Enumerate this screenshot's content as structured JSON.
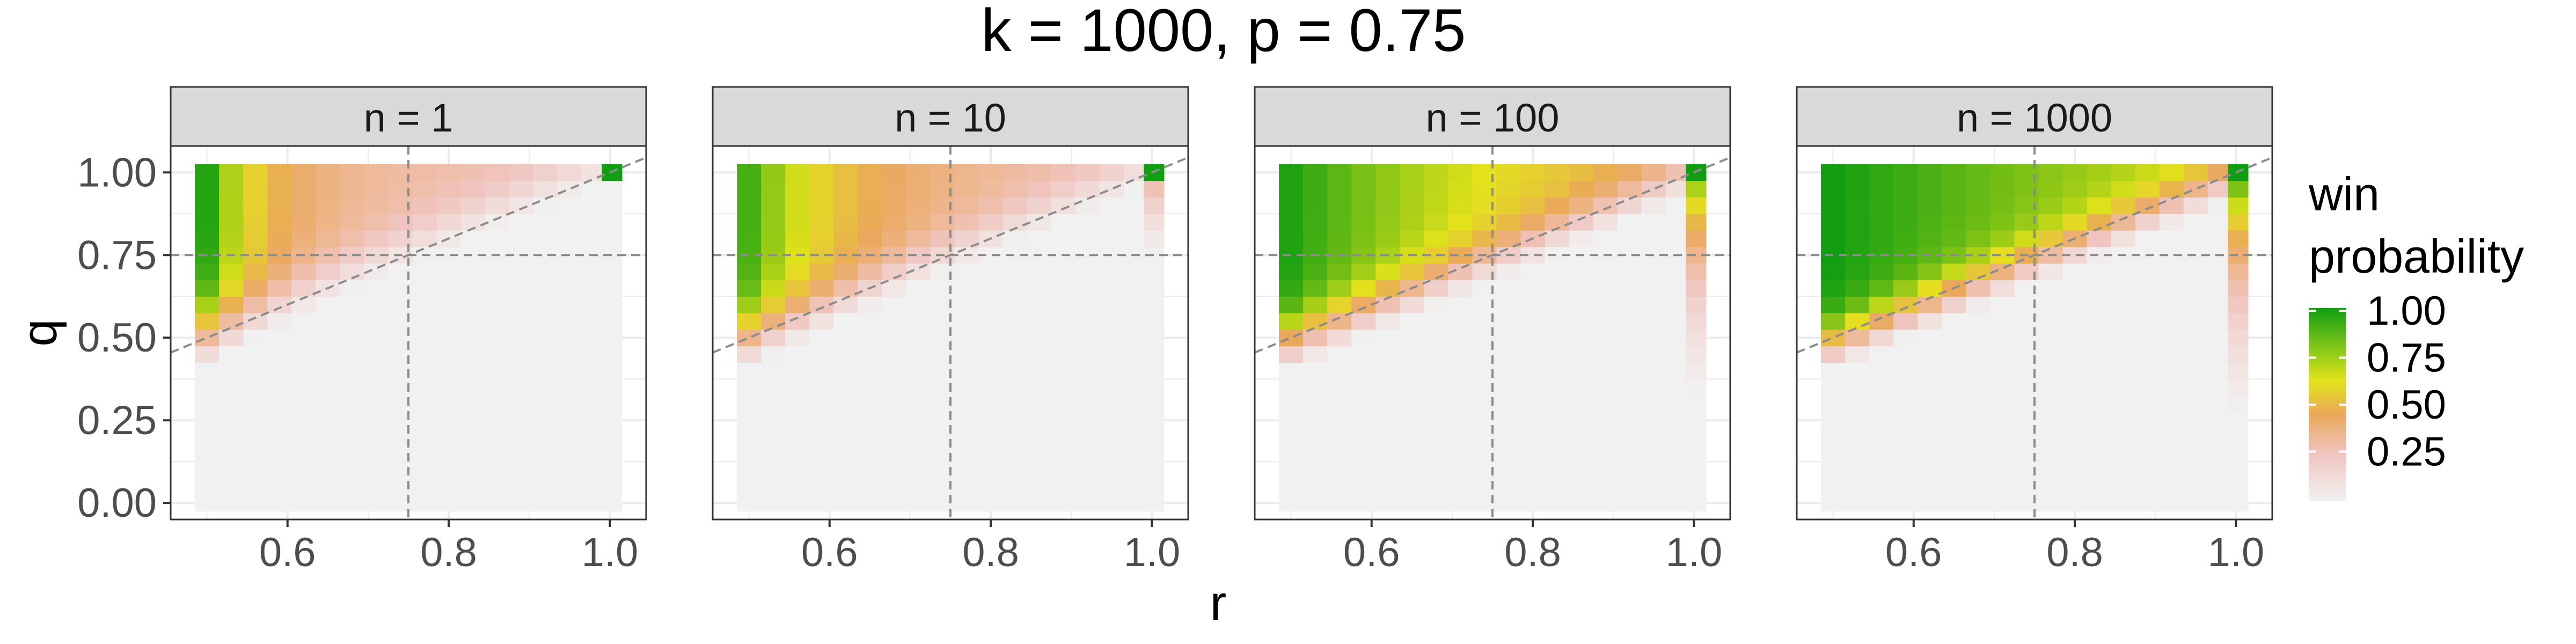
{
  "chart_data": {
    "type": "heatmap",
    "title": "k = 1000, p = 0.75",
    "xlabel": "r",
    "ylabel": "q",
    "xlim": [
      0.455,
      1.045
    ],
    "ylim": [
      -0.05,
      1.08
    ],
    "x_ticks": [
      "0.6",
      "0.8",
      "1.0"
    ],
    "y_ticks": [
      "0.00",
      "0.25",
      "0.50",
      "0.75",
      "1.00"
    ],
    "grid": true,
    "legend": {
      "title_lines": [
        "win",
        "probability"
      ],
      "position": "right",
      "ticks": [
        "0.25",
        "0.50",
        "0.75",
        "1.00"
      ]
    },
    "colors": {
      "low": "#f1f1f1",
      "pink": "#f0c4be",
      "orange": "#eaa85a",
      "yellow": "#e3e31a",
      "green": "#119e11",
      "panel_bg": "#ffffff",
      "grid": "#ebebeb",
      "strip_bg": "#d9d9d9",
      "strip_border": "#333333",
      "reference_line": "#8c8c8c"
    },
    "reference_lines": {
      "vertical_r": 0.75,
      "horizontal_q": 0.75,
      "diagonal": "q = r"
    },
    "r_values": [
      0.5,
      0.53,
      0.56,
      0.59,
      0.62,
      0.65,
      0.68,
      0.71,
      0.74,
      0.77,
      0.8,
      0.83,
      0.86,
      0.89,
      0.92,
      0.95,
      0.98,
      1.0
    ],
    "q_values": [
      0,
      0.05,
      0.1,
      0.15,
      0.2,
      0.25,
      0.3,
      0.35,
      0.4,
      0.45,
      0.5,
      0.55,
      0.6,
      0.65,
      0.7,
      0.75,
      0.8,
      0.85,
      0.9,
      0.95,
      1.0
    ],
    "panels": [
      {
        "label": "n = 1",
        "ridge": 0.86,
        "sharpness": 0.055,
        "amp": 0.97,
        "decay": 0.12,
        "edge_amp": 0.12,
        "top_amp": 0.55,
        "top_extent": 0.18
      },
      {
        "label": "n = 10",
        "ridge": 0.72,
        "sharpness": 0.05,
        "amp": 0.92,
        "decay": 0.22,
        "edge_amp": 0.42,
        "top_amp": 0.8,
        "top_extent": 0.12
      },
      {
        "label": "n = 100",
        "ridge": 0.58,
        "sharpness": 0.045,
        "amp": 0.98,
        "decay": 0.6,
        "edge_amp": 0.9,
        "top_amp": 0.95,
        "top_extent": 0.1
      },
      {
        "label": "n = 1000",
        "ridge": 0.5,
        "sharpness": 0.04,
        "amp": 1.0,
        "decay": 1.3,
        "edge_amp": 0.97,
        "top_amp": 0.97,
        "top_extent": 0.08
      }
    ]
  }
}
